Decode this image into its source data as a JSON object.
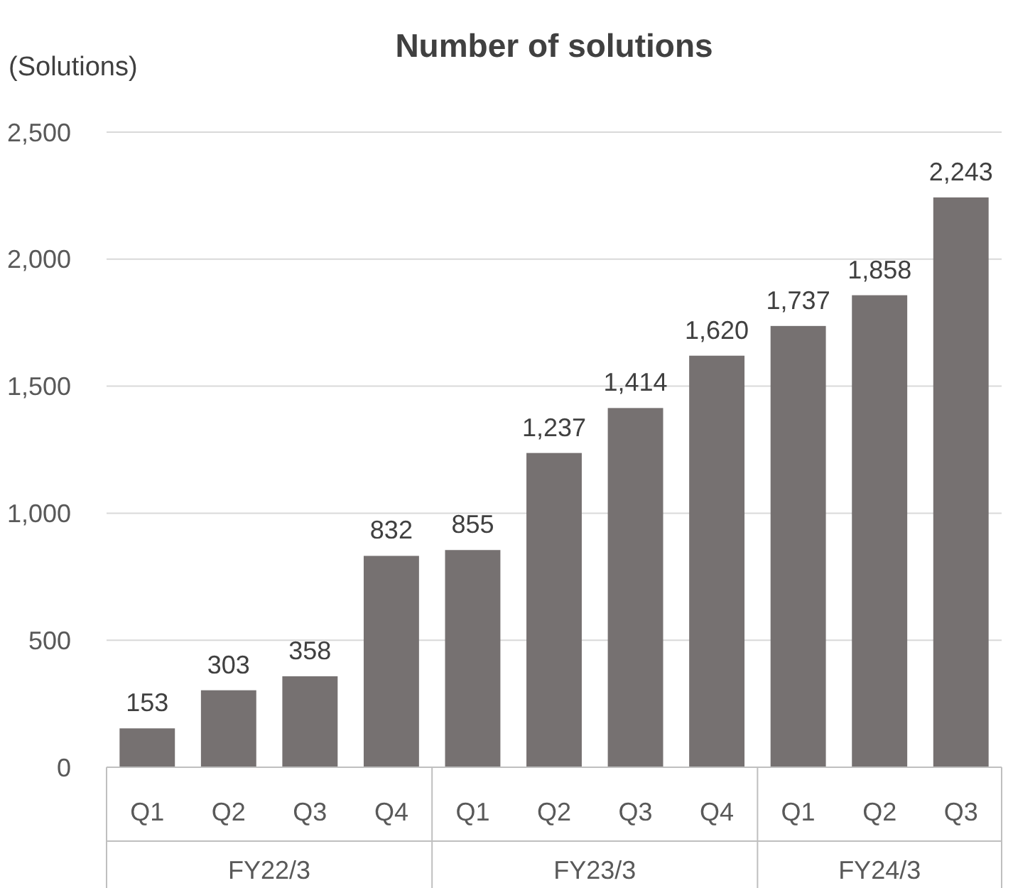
{
  "chart_data": {
    "type": "bar",
    "title": "Number of solutions",
    "ylabel": "(Solutions)",
    "categories": [
      "Q1",
      "Q2",
      "Q3",
      "Q4",
      "Q1",
      "Q2",
      "Q3",
      "Q4",
      "Q1",
      "Q2",
      "Q3"
    ],
    "values": [
      153,
      303,
      358,
      832,
      855,
      1237,
      1414,
      1620,
      1737,
      1858,
      2243
    ],
    "color": "#767171",
    "ylim": [
      0,
      2500
    ],
    "yticks": [
      0,
      {
        "value": 500,
        "label": "500"
      },
      {
        "value": 1000,
        "label": "1,000"
      },
      {
        "value": 1500,
        "label": "1,500"
      },
      {
        "value": 2000,
        "label": "2,000"
      },
      {
        "value": 2500,
        "label": "2,500"
      }
    ],
    "grid": "y",
    "value_labels": [
      "153",
      "303",
      "358",
      "832",
      "855",
      "1,237",
      "1,414",
      "1,620",
      "1,737",
      "1,858",
      "2,243"
    ],
    "annotations": [
      "FY22/3",
      "FY23/3",
      "FY24/3"
    ]
  }
}
